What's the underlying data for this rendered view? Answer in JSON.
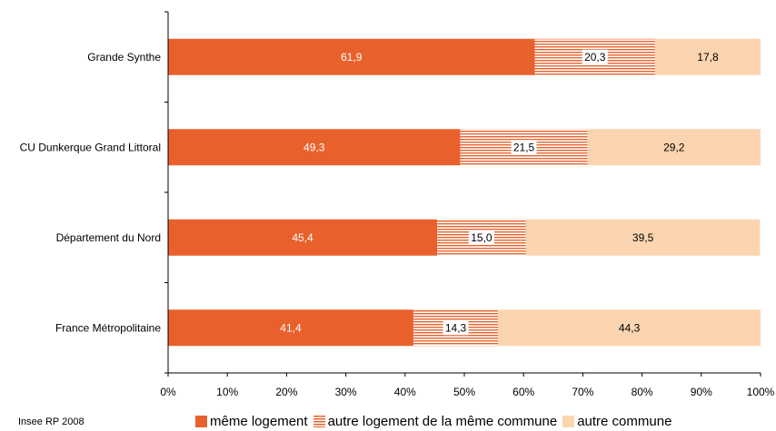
{
  "chart_data": {
    "type": "bar",
    "orientation": "horizontal",
    "stacked": "percent",
    "categories": [
      "Grande Synthe",
      "CU Dunkerque Grand Littoral",
      "Département du Nord",
      "France Métropolitaine"
    ],
    "series": [
      {
        "name": "même logement",
        "values": [
          61.9,
          49.3,
          45.4,
          41.4
        ],
        "labels": [
          "61,9",
          "49,3",
          "45,4",
          "41,4"
        ],
        "color": "#E8612C",
        "pattern": "solid",
        "label_color": "#ffffff"
      },
      {
        "name": "autre logement de la même commune",
        "values": [
          20.3,
          21.5,
          15.0,
          14.3
        ],
        "labels": [
          "20,3",
          "21,5",
          "15,0",
          "14,3"
        ],
        "color": "#E8612C",
        "pattern": "horizontal-stripes",
        "label_color": "#000000"
      },
      {
        "name": "autre commune",
        "values": [
          17.8,
          29.2,
          39.5,
          44.3
        ],
        "labels": [
          "17,8",
          "29,2",
          "39,5",
          "44,3"
        ],
        "color": "#FCD5B0",
        "pattern": "solid",
        "label_color": "#000000"
      }
    ],
    "xticks": [
      "0%",
      "10%",
      "20%",
      "30%",
      "40%",
      "50%",
      "60%",
      "70%",
      "80%",
      "90%",
      "100%"
    ],
    "xlim": [
      0,
      100
    ],
    "grid": false,
    "legend": "bottom"
  },
  "source_note": "Insee RP 2008"
}
